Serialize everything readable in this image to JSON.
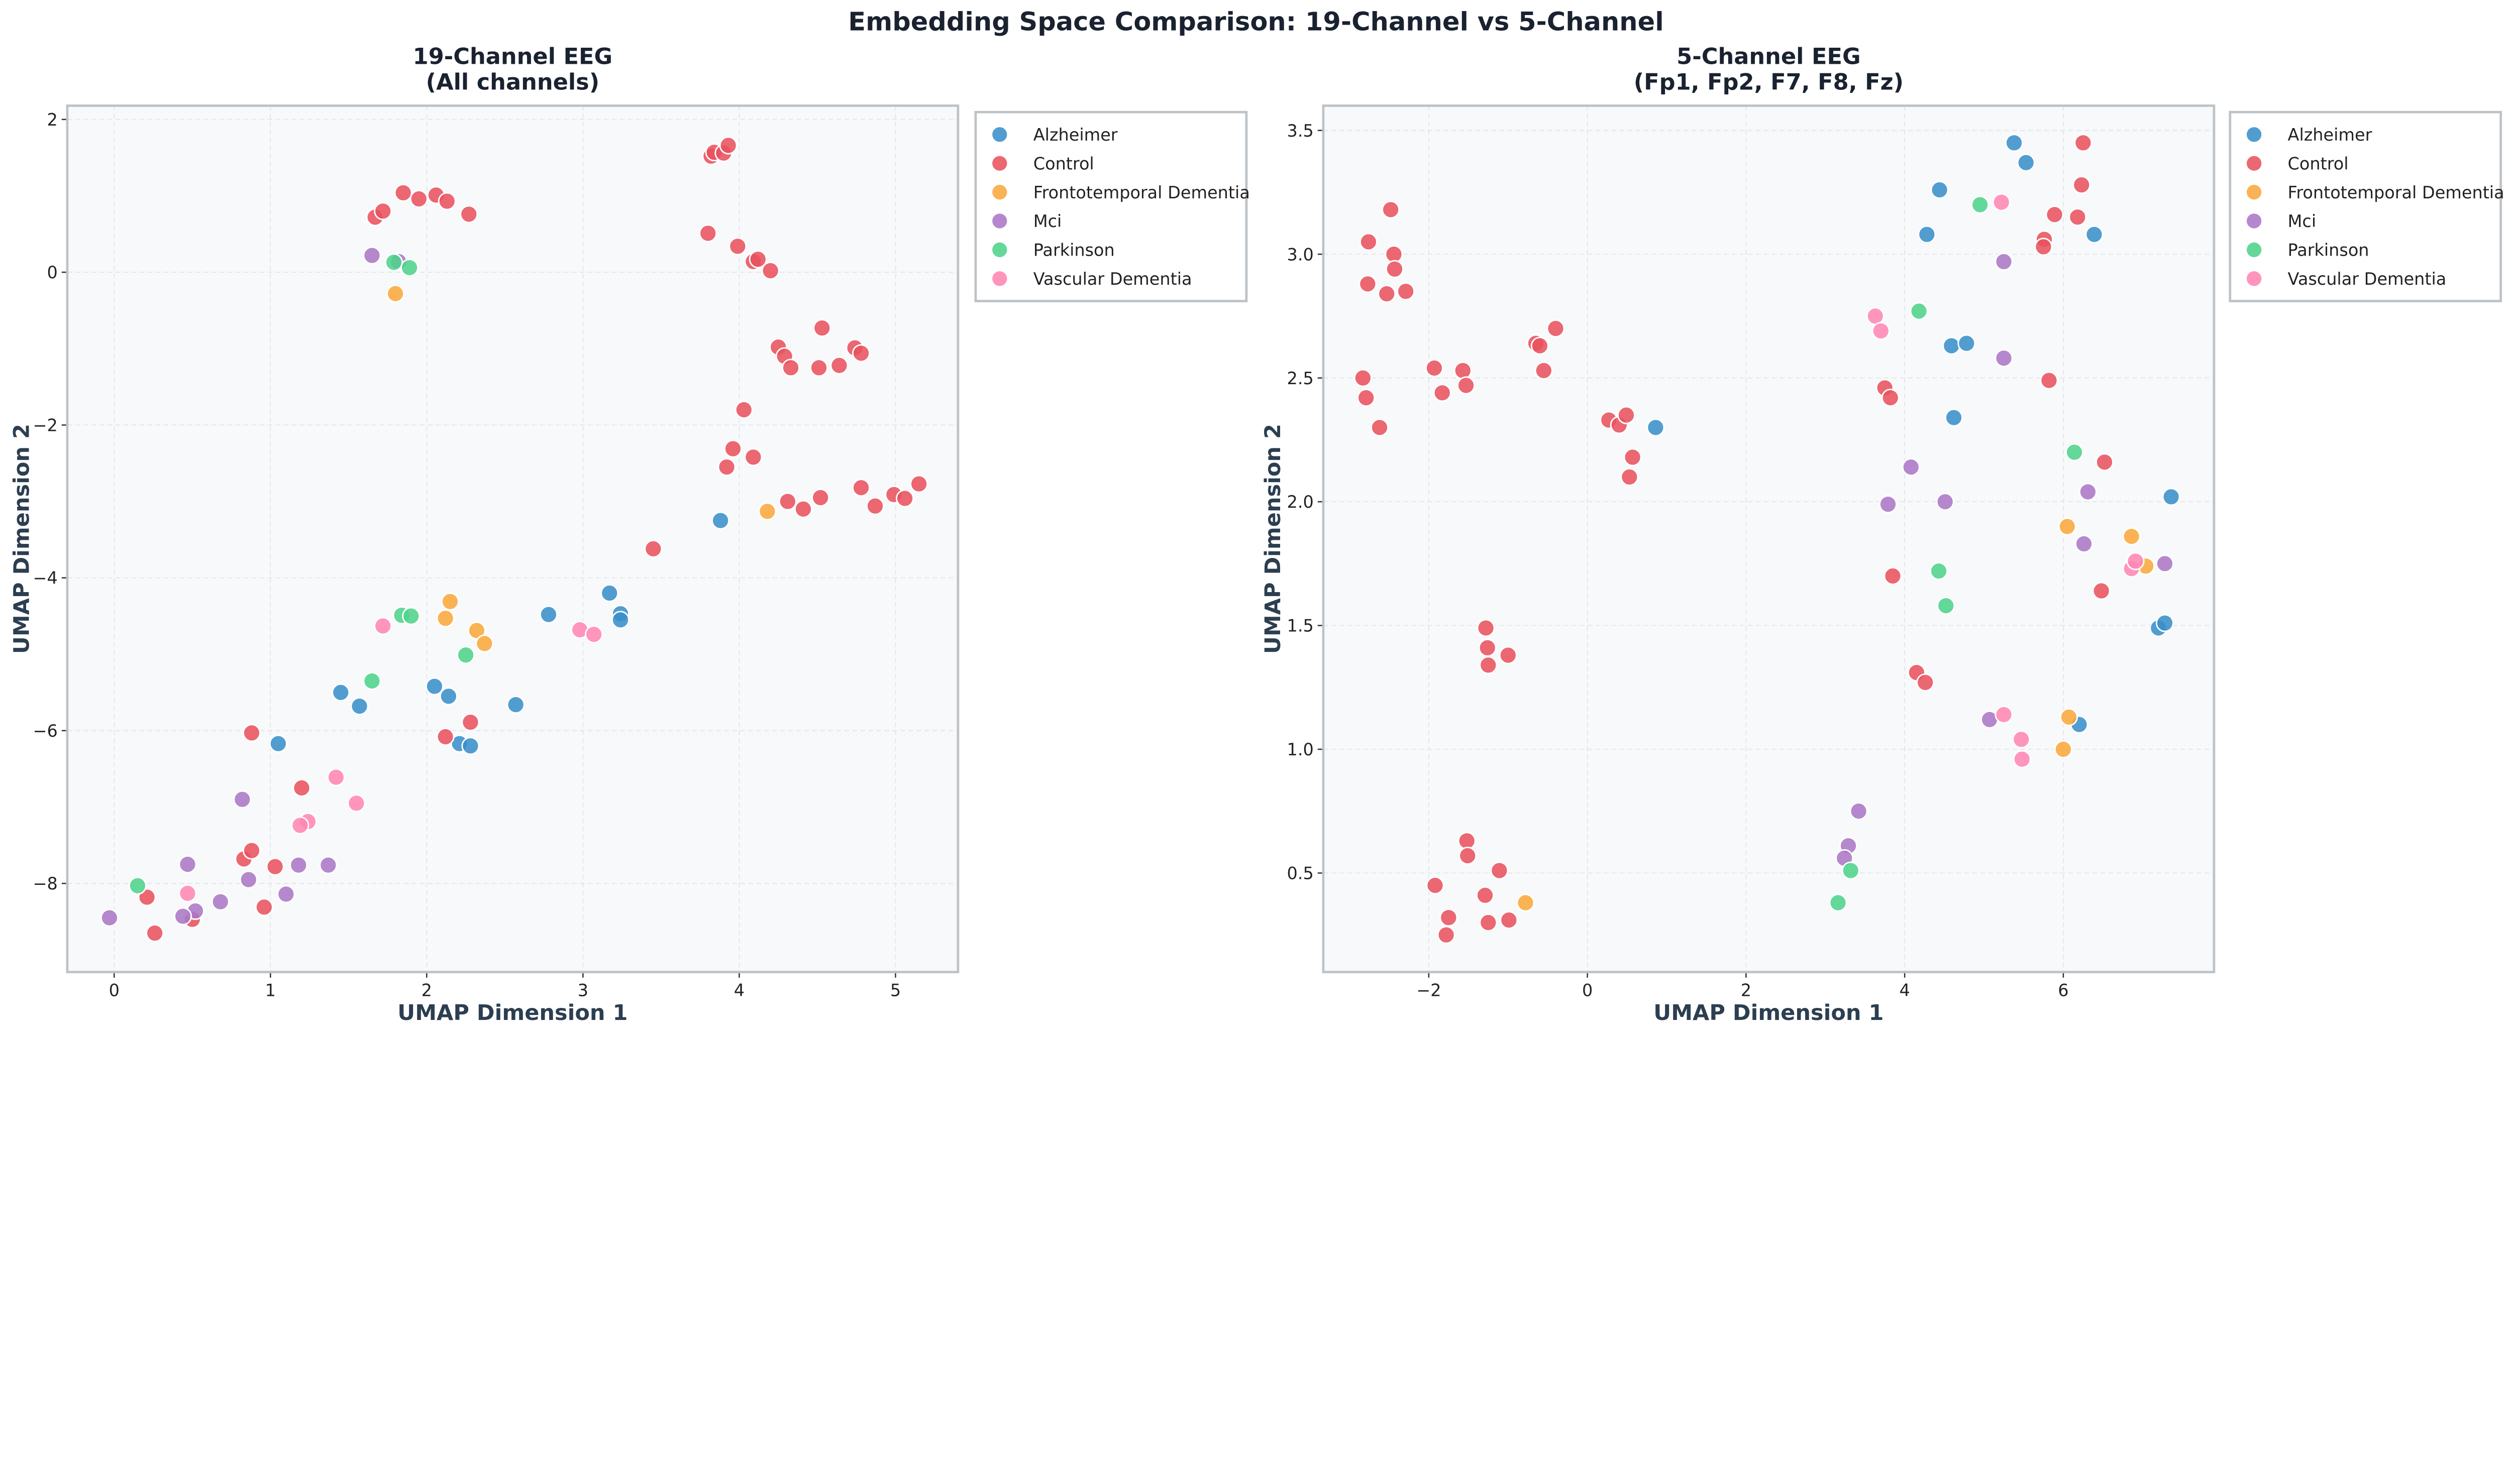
{
  "title": "Embedding Space Comparison: 19-Channel vs 5-Channel",
  "colors": {
    "Alzheimer": "#3a8fca",
    "Control": "#e8525e",
    "Frontotemporal Dementia": "#f9a83c",
    "Mci": "#ab78c6",
    "Parkinson": "#4fd38a",
    "Vascular Dementia": "#ff86b4"
  },
  "chart_data": [
    {
      "type": "scatter",
      "title_lines": [
        "19-Channel EEG",
        "(All channels)"
      ],
      "xlabel": "UMAP Dimension 1",
      "ylabel": "UMAP Dimension 2",
      "xlim": [
        -0.3,
        5.4
      ],
      "ylim": [
        -9.16,
        2.18
      ],
      "xticks": [
        0,
        1,
        2,
        3,
        4,
        5
      ],
      "xtick_labels": [
        "0",
        "1",
        "2",
        "3",
        "4",
        "5"
      ],
      "yticks": [
        2,
        0,
        -2,
        -4,
        -6,
        -8
      ],
      "ytick_labels": [
        "2",
        "0",
        "−2",
        "−4",
        "−6",
        "−8"
      ],
      "grid": true,
      "legend_placement": "outside-right",
      "series": [
        {
          "name": "Alzheimer",
          "points": [
            [
              1.05,
              -6.17
            ],
            [
              1.45,
              -5.5
            ],
            [
              1.57,
              -5.68
            ],
            [
              2.05,
              -5.42
            ],
            [
              2.14,
              -5.55
            ],
            [
              2.21,
              -6.17
            ],
            [
              2.28,
              -6.2
            ],
            [
              2.57,
              -5.66
            ],
            [
              2.78,
              -4.48
            ],
            [
              3.17,
              -4.2
            ],
            [
              3.24,
              -4.47
            ],
            [
              3.24,
              -4.55
            ],
            [
              3.88,
              -3.25
            ]
          ]
        },
        {
          "name": "Control",
          "points": [
            [
              1.67,
              0.72
            ],
            [
              1.72,
              0.8
            ],
            [
              1.85,
              1.04
            ],
            [
              1.95,
              0.96
            ],
            [
              2.06,
              1.01
            ],
            [
              2.13,
              0.93
            ],
            [
              2.27,
              0.76
            ],
            [
              3.8,
              0.51
            ],
            [
              3.82,
              1.52
            ],
            [
              3.84,
              1.57
            ],
            [
              3.9,
              1.56
            ],
            [
              3.93,
              1.66
            ],
            [
              3.99,
              0.34
            ],
            [
              4.09,
              0.14
            ],
            [
              4.12,
              0.17
            ],
            [
              4.2,
              0.02
            ],
            [
              4.25,
              -0.98
            ],
            [
              4.29,
              -1.1
            ],
            [
              4.33,
              -1.25
            ],
            [
              4.51,
              -1.25
            ],
            [
              4.53,
              -0.73
            ],
            [
              4.64,
              -1.22
            ],
            [
              4.74,
              -0.99
            ],
            [
              4.78,
              -1.06
            ],
            [
              4.03,
              -1.8
            ],
            [
              3.96,
              -2.31
            ],
            [
              4.09,
              -2.42
            ],
            [
              3.92,
              -2.55
            ],
            [
              4.31,
              -3.0
            ],
            [
              4.41,
              -3.1
            ],
            [
              4.52,
              -2.95
            ],
            [
              4.78,
              -2.82
            ],
            [
              4.87,
              -3.06
            ],
            [
              4.99,
              -2.91
            ],
            [
              5.06,
              -2.96
            ],
            [
              5.15,
              -2.77
            ],
            [
              3.45,
              -3.62
            ],
            [
              0.88,
              -6.03
            ],
            [
              2.12,
              -6.08
            ],
            [
              2.28,
              -5.89
            ],
            [
              1.2,
              -6.75
            ],
            [
              0.83,
              -7.68
            ],
            [
              0.88,
              -7.57
            ],
            [
              1.03,
              -7.78
            ],
            [
              0.96,
              -8.31
            ],
            [
              0.21,
              -8.18
            ],
            [
              0.26,
              -8.65
            ],
            [
              0.5,
              -8.47
            ]
          ]
        },
        {
          "name": "Frontotemporal Dementia",
          "points": [
            [
              1.8,
              -0.28
            ],
            [
              2.12,
              -4.53
            ],
            [
              2.15,
              -4.31
            ],
            [
              2.32,
              -4.69
            ],
            [
              2.37,
              -4.86
            ],
            [
              4.18,
              -3.13
            ]
          ]
        },
        {
          "name": "Mci",
          "points": [
            [
              1.65,
              0.22
            ],
            [
              1.82,
              0.14
            ],
            [
              0.82,
              -6.9
            ],
            [
              0.47,
              -7.75
            ],
            [
              0.86,
              -7.95
            ],
            [
              1.18,
              -7.76
            ],
            [
              1.37,
              -7.76
            ],
            [
              1.1,
              -8.14
            ],
            [
              0.68,
              -8.24
            ],
            [
              0.52,
              -8.36
            ],
            [
              0.44,
              -8.43
            ],
            [
              -0.03,
              -8.45
            ]
          ]
        },
        {
          "name": "Parkinson",
          "points": [
            [
              1.79,
              0.13
            ],
            [
              1.89,
              0.06
            ],
            [
              1.84,
              -4.49
            ],
            [
              1.9,
              -4.5
            ],
            [
              2.25,
              -5.01
            ],
            [
              1.65,
              -5.35
            ],
            [
              0.15,
              -8.03
            ]
          ]
        },
        {
          "name": "Vascular Dementia",
          "points": [
            [
              1.72,
              -4.63
            ],
            [
              2.98,
              -4.68
            ],
            [
              3.07,
              -4.74
            ],
            [
              1.42,
              -6.61
            ],
            [
              1.55,
              -6.95
            ],
            [
              1.24,
              -7.19
            ],
            [
              1.19,
              -7.24
            ],
            [
              0.47,
              -8.13
            ]
          ]
        }
      ]
    },
    {
      "type": "scatter",
      "title_lines": [
        "5-Channel EEG",
        "(Fp1, Fp2, F7, F8, Fz)"
      ],
      "xlabel": "UMAP Dimension 1",
      "ylabel": "UMAP Dimension 2",
      "xlim": [
        -3.33,
        7.9
      ],
      "ylim": [
        0.1,
        3.6
      ],
      "xticks": [
        -2,
        0,
        2,
        4,
        6
      ],
      "xtick_labels": [
        "−2",
        "0",
        "2",
        "4",
        "6"
      ],
      "yticks": [
        3.5,
        3.0,
        2.5,
        2.0,
        1.5,
        1.0,
        0.5
      ],
      "ytick_labels": [
        "3.5",
        "3.0",
        "2.5",
        "2.0",
        "1.5",
        "1.0",
        "0.5"
      ],
      "grid": true,
      "legend_placement": "outside-right",
      "series": [
        {
          "name": "Alzheimer",
          "points": [
            [
              5.38,
              3.45
            ],
            [
              5.53,
              3.37
            ],
            [
              4.44,
              3.26
            ],
            [
              4.28,
              3.08
            ],
            [
              6.39,
              3.08
            ],
            [
              4.59,
              2.63
            ],
            [
              4.78,
              2.64
            ],
            [
              4.62,
              2.34
            ],
            [
              0.86,
              2.3
            ],
            [
              7.36,
              2.02
            ],
            [
              7.2,
              1.49
            ],
            [
              7.28,
              1.51
            ],
            [
              6.2,
              1.1
            ]
          ]
        },
        {
          "name": "Control",
          "points": [
            [
              -2.48,
              3.18
            ],
            [
              -2.76,
              3.05
            ],
            [
              -2.44,
              3.0
            ],
            [
              -2.43,
              2.94
            ],
            [
              -2.77,
              2.88
            ],
            [
              -2.53,
              2.84
            ],
            [
              -2.29,
              2.85
            ],
            [
              -2.83,
              2.5
            ],
            [
              -2.79,
              2.42
            ],
            [
              -2.62,
              2.3
            ],
            [
              -1.93,
              2.54
            ],
            [
              -1.57,
              2.53
            ],
            [
              -1.83,
              2.44
            ],
            [
              -1.53,
              2.47
            ],
            [
              -0.65,
              2.64
            ],
            [
              -0.6,
              2.63
            ],
            [
              -0.4,
              2.7
            ],
            [
              -0.55,
              2.53
            ],
            [
              0.27,
              2.33
            ],
            [
              0.4,
              2.31
            ],
            [
              0.49,
              2.35
            ],
            [
              0.57,
              2.18
            ],
            [
              0.53,
              2.1
            ],
            [
              -1.28,
              1.49
            ],
            [
              -1.26,
              1.41
            ],
            [
              -1.25,
              1.34
            ],
            [
              -1.0,
              1.38
            ],
            [
              -1.52,
              0.63
            ],
            [
              -1.51,
              0.57
            ],
            [
              -1.11,
              0.51
            ],
            [
              -1.92,
              0.45
            ],
            [
              -1.29,
              0.41
            ],
            [
              -1.75,
              0.32
            ],
            [
              -1.25,
              0.3
            ],
            [
              -0.99,
              0.31
            ],
            [
              -1.78,
              0.25
            ],
            [
              6.25,
              3.45
            ],
            [
              6.23,
              3.28
            ],
            [
              5.89,
              3.16
            ],
            [
              6.18,
              3.15
            ],
            [
              5.76,
              3.06
            ],
            [
              5.75,
              3.03
            ],
            [
              5.82,
              2.49
            ],
            [
              3.75,
              2.46
            ],
            [
              3.82,
              2.42
            ],
            [
              6.52,
              2.16
            ],
            [
              3.85,
              1.7
            ],
            [
              6.48,
              1.64
            ],
            [
              4.15,
              1.31
            ],
            [
              4.26,
              1.27
            ]
          ]
        },
        {
          "name": "Frontotemporal Dementia",
          "points": [
            [
              -0.78,
              0.38
            ],
            [
              6.05,
              1.9
            ],
            [
              6.86,
              1.86
            ],
            [
              7.04,
              1.74
            ],
            [
              6.07,
              1.13
            ],
            [
              6.0,
              1.0
            ]
          ]
        },
        {
          "name": "Mci",
          "points": [
            [
              5.25,
              2.97
            ],
            [
              5.25,
              2.58
            ],
            [
              4.08,
              2.14
            ],
            [
              3.79,
              1.99
            ],
            [
              4.51,
              2.0
            ],
            [
              6.31,
              2.04
            ],
            [
              6.26,
              1.83
            ],
            [
              7.28,
              1.75
            ],
            [
              5.07,
              1.12
            ],
            [
              3.42,
              0.75
            ],
            [
              3.29,
              0.61
            ],
            [
              3.24,
              0.56
            ]
          ]
        },
        {
          "name": "Parkinson",
          "points": [
            [
              4.95,
              3.2
            ],
            [
              4.18,
              2.77
            ],
            [
              6.14,
              2.2
            ],
            [
              4.43,
              1.72
            ],
            [
              4.52,
              1.58
            ],
            [
              3.32,
              0.51
            ],
            [
              3.16,
              0.38
            ]
          ]
        },
        {
          "name": "Vascular Dementia",
          "points": [
            [
              5.22,
              3.21
            ],
            [
              3.63,
              2.75
            ],
            [
              3.7,
              2.69
            ],
            [
              6.86,
              1.73
            ],
            [
              6.91,
              1.76
            ],
            [
              5.25,
              1.14
            ],
            [
              5.47,
              1.04
            ],
            [
              5.48,
              0.96
            ]
          ]
        }
      ]
    }
  ]
}
